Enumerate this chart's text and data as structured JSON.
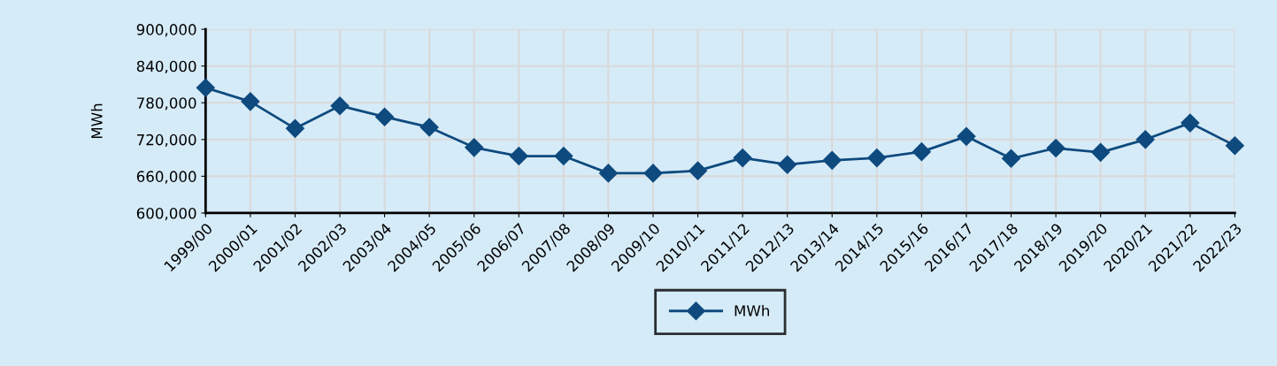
{
  "chart_data": {
    "type": "line",
    "ylabel": "MWh",
    "categories": [
      "1999/00",
      "2000/01",
      "2001/02",
      "2002/03",
      "2003/04",
      "2004/05",
      "2005/06",
      "2006/07",
      "2007/08",
      "2008/09",
      "2009/10",
      "2010/11",
      "2011/12",
      "2012/13",
      "2013/14",
      "2014/15",
      "2015/16",
      "2016/17",
      "2017/18",
      "2018/19",
      "2019/20",
      "2020/21",
      "2021/22",
      "2022/23"
    ],
    "series": [
      {
        "name": "MWh",
        "color": "#0e4a7e",
        "values": [
          804500,
          782000,
          738000,
          775000,
          757000,
          740000,
          707000,
          693000,
          693000,
          665000,
          665000,
          669000,
          690000,
          679000,
          686000,
          690000,
          700000,
          725000,
          689000,
          706000,
          699000,
          720000,
          747000,
          710000
        ]
      }
    ],
    "ylim": [
      600000,
      900000
    ],
    "yticks": [
      {
        "value": 600000,
        "label": "600,000"
      },
      {
        "value": 660000,
        "label": "660,000"
      },
      {
        "value": 720000,
        "label": "720,000"
      },
      {
        "value": 780000,
        "label": "780,000"
      },
      {
        "value": 840000,
        "label": "840,000"
      },
      {
        "value": 900000,
        "label": "900,000"
      }
    ],
    "grid": true,
    "legend": "bottom",
    "marker": "diamond",
    "line_style": "solid"
  }
}
